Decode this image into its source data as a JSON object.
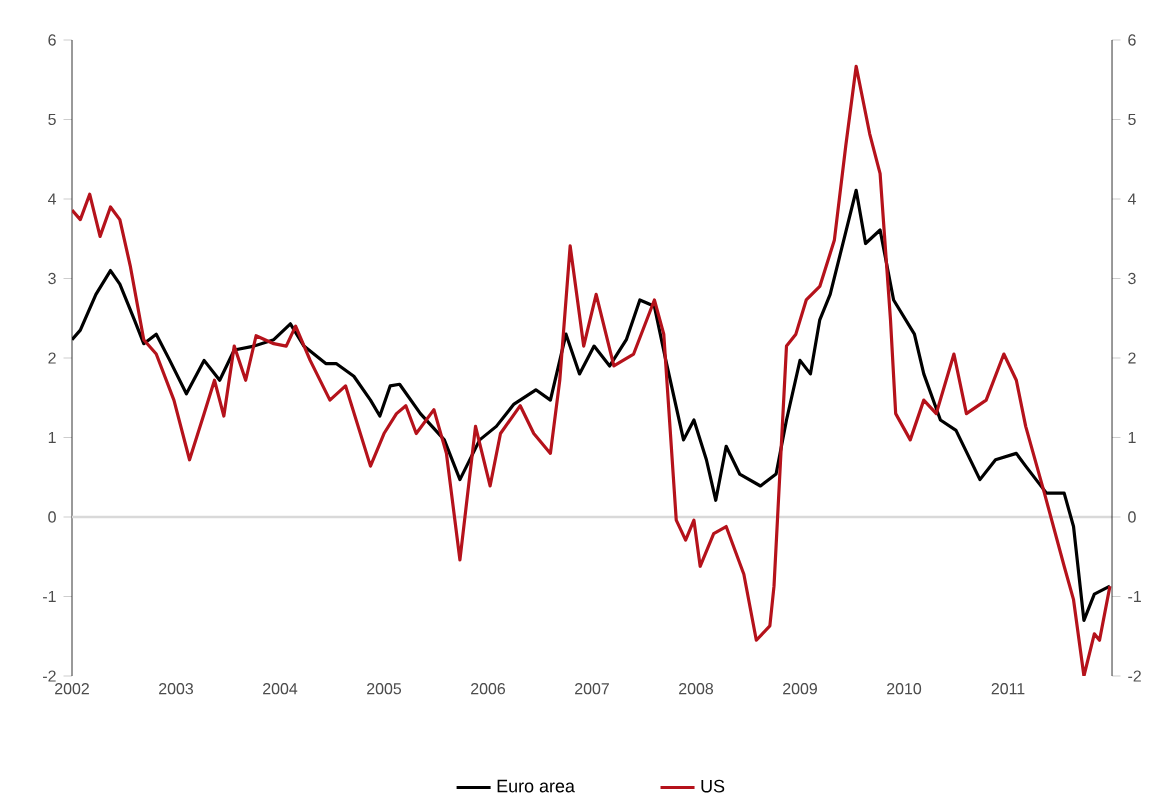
{
  "chart_data": {
    "type": "line",
    "xlim": [
      2002,
      2012
    ],
    "xticks": [
      2002,
      2003,
      2004,
      2005,
      2006,
      2007,
      2008,
      2009,
      2010,
      2011
    ],
    "ylim": [
      -2,
      6
    ],
    "yticks": [
      -2,
      -1,
      0,
      1,
      2,
      3,
      4,
      5,
      6
    ],
    "y2lim": [
      -2,
      6
    ],
    "y2ticks": [
      -2,
      -1,
      0,
      1,
      2,
      3,
      4,
      5,
      6
    ],
    "legend": "bottom",
    "grid": false,
    "ref_lines": [
      {
        "axis": "y",
        "value": 0,
        "color": "#d9d9d9"
      }
    ],
    "series": [
      {
        "name": "Euro area",
        "color": "#000000",
        "x": [
          2002.0,
          2002.08,
          2002.23,
          2002.37,
          2002.46,
          2002.6,
          2002.69,
          2002.81,
          2002.94,
          2003.1,
          2003.27,
          2003.42,
          2003.56,
          2003.75,
          2003.94,
          2004.1,
          2004.23,
          2004.44,
          2004.54,
          2004.71,
          2004.87,
          2004.96,
          2005.06,
          2005.15,
          2005.35,
          2005.58,
          2005.73,
          2005.92,
          2006.08,
          2006.25,
          2006.46,
          2006.6,
          2006.75,
          2006.88,
          2007.02,
          2007.17,
          2007.33,
          2007.46,
          2007.6,
          2007.71,
          2007.88,
          2007.98,
          2008.1,
          2008.19,
          2008.29,
          2008.42,
          2008.62,
          2008.77,
          2008.87,
          2009.0,
          2009.1,
          2009.19,
          2009.29,
          2009.42,
          2009.54,
          2009.63,
          2009.77,
          2009.9,
          2010.1,
          2010.19,
          2010.35,
          2010.5,
          2010.73,
          2010.88,
          2011.08,
          2011.17,
          2011.37,
          2011.54,
          2011.63,
          2011.73,
          2011.83,
          2011.98
        ],
        "values": [
          2.23,
          2.35,
          2.8,
          3.1,
          2.93,
          2.48,
          2.18,
          2.3,
          1.97,
          1.55,
          1.97,
          1.72,
          2.1,
          2.15,
          2.23,
          2.43,
          2.15,
          1.93,
          1.93,
          1.77,
          1.47,
          1.27,
          1.65,
          1.67,
          1.3,
          0.97,
          0.47,
          0.97,
          1.14,
          1.42,
          1.6,
          1.47,
          2.3,
          1.8,
          2.15,
          1.9,
          2.23,
          2.73,
          2.65,
          1.97,
          0.97,
          1.22,
          0.72,
          0.21,
          0.89,
          0.54,
          0.39,
          0.54,
          1.22,
          1.97,
          1.8,
          2.48,
          2.8,
          3.48,
          4.11,
          3.44,
          3.61,
          2.73,
          2.3,
          1.8,
          1.22,
          1.09,
          0.47,
          0.72,
          0.8,
          0.64,
          0.3,
          0.3,
          -0.12,
          -1.3,
          -0.97,
          -0.87
        ]
      },
      {
        "name": "US",
        "color": "#b5121b",
        "x": [
          2002.0,
          2002.08,
          2002.17,
          2002.27,
          2002.37,
          2002.46,
          2002.56,
          2002.69,
          2002.81,
          2002.98,
          2003.13,
          2003.27,
          2003.37,
          2003.46,
          2003.56,
          2003.67,
          2003.77,
          2003.94,
          2004.06,
          2004.15,
          2004.29,
          2004.48,
          2004.63,
          2004.87,
          2005.0,
          2005.12,
          2005.21,
          2005.31,
          2005.48,
          2005.6,
          2005.73,
          2005.88,
          2006.02,
          2006.12,
          2006.31,
          2006.44,
          2006.6,
          2006.69,
          2006.79,
          2006.92,
          2007.04,
          2007.21,
          2007.4,
          2007.6,
          2007.69,
          2007.81,
          2007.9,
          2007.98,
          2008.04,
          2008.17,
          2008.29,
          2008.46,
          2008.58,
          2008.71,
          2008.75,
          2008.87,
          2008.96,
          2009.06,
          2009.19,
          2009.33,
          2009.44,
          2009.54,
          2009.67,
          2009.77,
          2009.87,
          2009.92,
          2010.06,
          2010.19,
          2010.31,
          2010.48,
          2010.6,
          2010.79,
          2010.96,
          2011.08,
          2011.17,
          2011.35,
          2011.54,
          2011.63,
          2011.73,
          2011.83,
          2011.88,
          2011.98
        ],
        "values": [
          3.86,
          3.74,
          4.06,
          3.53,
          3.9,
          3.74,
          3.16,
          2.23,
          2.05,
          1.47,
          0.72,
          1.3,
          1.72,
          1.27,
          2.15,
          1.72,
          2.28,
          2.18,
          2.15,
          2.4,
          1.97,
          1.47,
          1.65,
          0.64,
          1.05,
          1.3,
          1.4,
          1.05,
          1.35,
          0.8,
          -0.54,
          1.14,
          0.39,
          1.05,
          1.4,
          1.05,
          0.8,
          1.72,
          3.41,
          2.15,
          2.8,
          1.9,
          2.05,
          2.73,
          2.3,
          -0.04,
          -0.29,
          -0.04,
          -0.62,
          -0.21,
          -0.12,
          -0.72,
          -1.55,
          -1.37,
          -0.87,
          2.15,
          2.3,
          2.73,
          2.9,
          3.48,
          4.67,
          5.67,
          4.82,
          4.32,
          2.48,
          1.3,
          0.97,
          1.47,
          1.3,
          2.05,
          1.3,
          1.47,
          2.05,
          1.72,
          1.14,
          0.3,
          -0.62,
          -1.04,
          -2.0,
          -1.47,
          -1.55,
          -0.87
        ]
      }
    ]
  }
}
